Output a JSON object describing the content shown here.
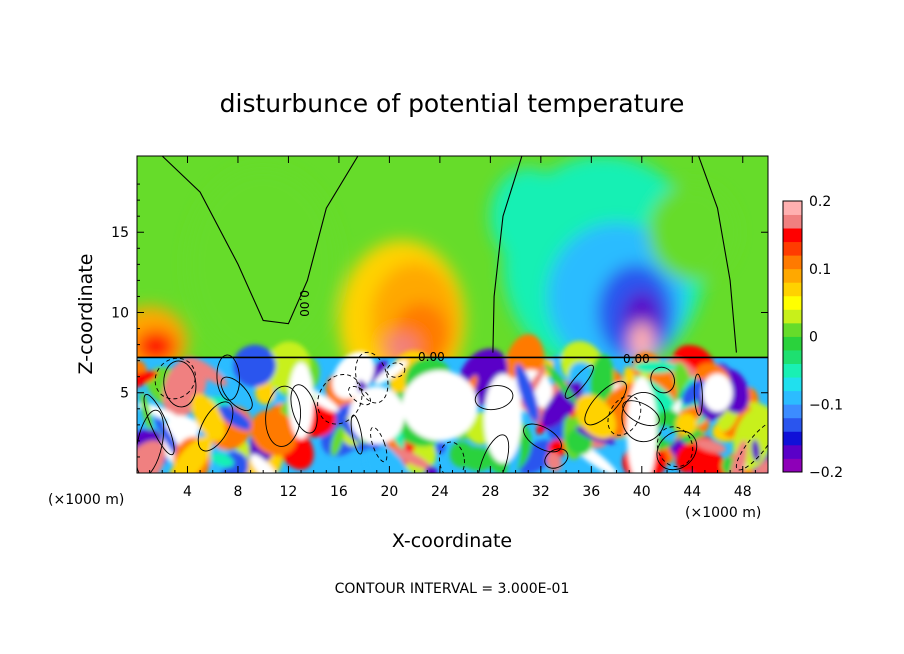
{
  "chart_data": {
    "type": "heatmap",
    "title": "disturbunce of potential temperature",
    "xlabel": "X-coordinate",
    "ylabel": "Z-coordinate",
    "x_unit_label": "(×1000 m)",
    "x_ticks": [
      4,
      8,
      12,
      16,
      20,
      24,
      28,
      32,
      36,
      40,
      44,
      48
    ],
    "y_ticks": [
      5,
      10,
      15
    ],
    "xlim": [
      0,
      50
    ],
    "ylim": [
      0,
      19.75
    ],
    "footer": "CONTOUR INTERVAL = 3.000E-01",
    "contour_labels": [
      "0.00",
      "0.00",
      "0.00"
    ],
    "colorbar": {
      "ticks": [
        "0.2",
        "0.1",
        "0",
        "−0.1",
        "−0.2"
      ],
      "range": [
        -0.2,
        0.2
      ],
      "colors": [
        "#8e00b8",
        "#5a00c8",
        "#1010d8",
        "#2a55ee",
        "#3c8cff",
        "#2cbcff",
        "#20e0ee",
        "#19f0b4",
        "#1ee070",
        "#2ad23c",
        "#66dc2a",
        "#c8f01a",
        "#ffff00",
        "#ffd200",
        "#ffa800",
        "#ff7a00",
        "#ff3c00",
        "#ff0000",
        "#f08080",
        "#ffb0b0"
      ]
    },
    "interface_height": 7.2
  }
}
